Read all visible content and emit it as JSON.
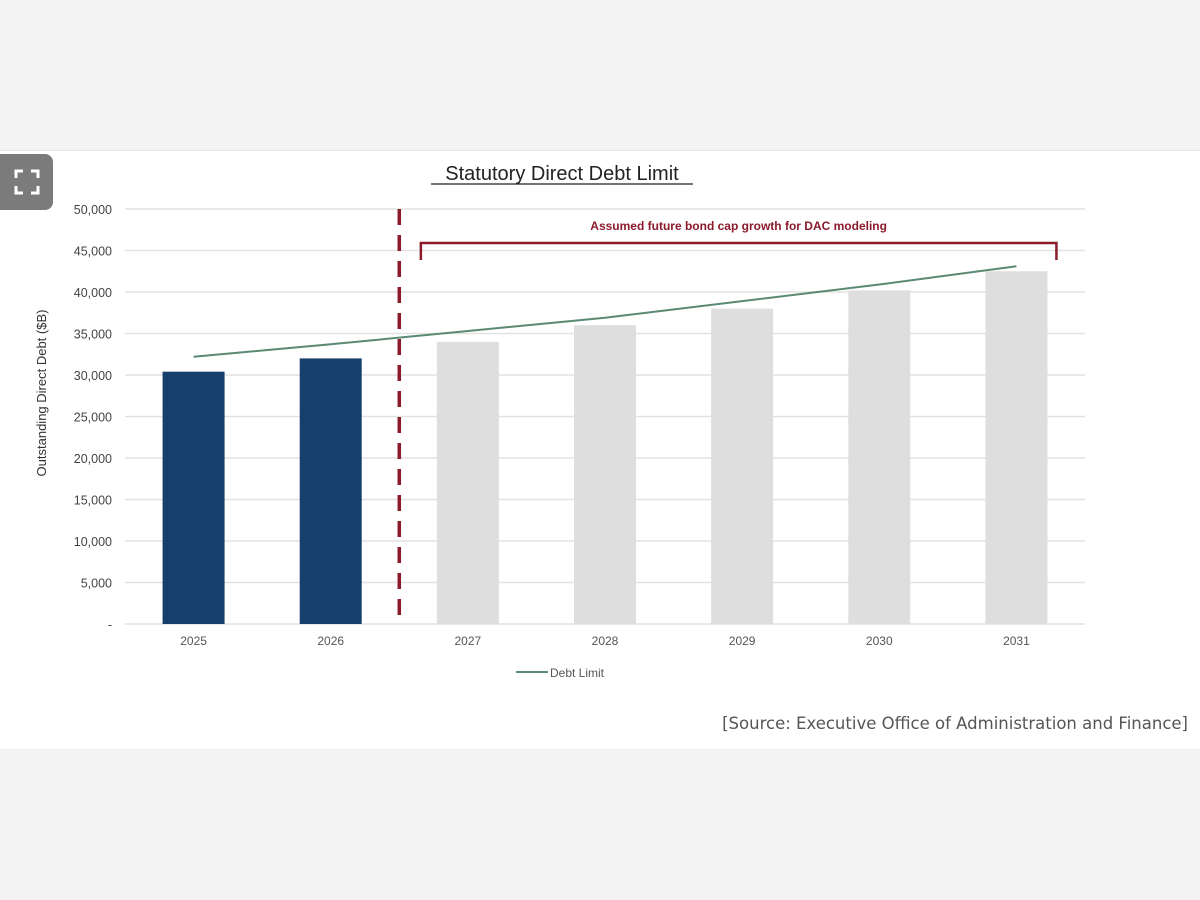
{
  "expand_button": {
    "icon": "expand-icon"
  },
  "source": "[Source: Executive Office of Administration and Finance]",
  "chart_data": {
    "type": "bar",
    "title": "Statutory Direct Debt Limit",
    "ylabel": "Outstanding Direct Debt ($B)",
    "xlabel": "",
    "ylim": [
      0,
      50000
    ],
    "yticks": [
      0,
      5000,
      10000,
      15000,
      20000,
      25000,
      30000,
      35000,
      40000,
      45000,
      50000
    ],
    "ytick_labels": [
      "-",
      "5,000",
      "10,000",
      "15,000",
      "20,000",
      "25,000",
      "30,000",
      "35,000",
      "40,000",
      "45,000",
      "50,000"
    ],
    "grid": true,
    "categories": [
      "2025",
      "2026",
      "2027",
      "2028",
      "2029",
      "2030",
      "2031"
    ],
    "bars": {
      "values": [
        30400,
        32000,
        34000,
        36000,
        38000,
        40200,
        42500
      ],
      "colors": [
        "#173f6b",
        "#173f6b",
        "#dedede",
        "#dedede",
        "#dedede",
        "#dedede",
        "#dedede"
      ]
    },
    "series": [
      {
        "name": "Debt Limit",
        "type": "line",
        "color": "#5a8a72",
        "values": [
          32200,
          33700,
          35300,
          36900,
          38900,
          40900,
          43100
        ]
      }
    ],
    "annotation": {
      "text": "Assumed future bond cap growth for DAC modeling",
      "range": [
        "2027",
        "2031"
      ],
      "color": "#8b1a2b"
    },
    "divider": {
      "between": [
        "2026",
        "2027"
      ],
      "style": "dashed",
      "color": "#8b1a2b"
    },
    "legend": {
      "position": "bottom",
      "entries": [
        "Debt Limit"
      ]
    }
  }
}
